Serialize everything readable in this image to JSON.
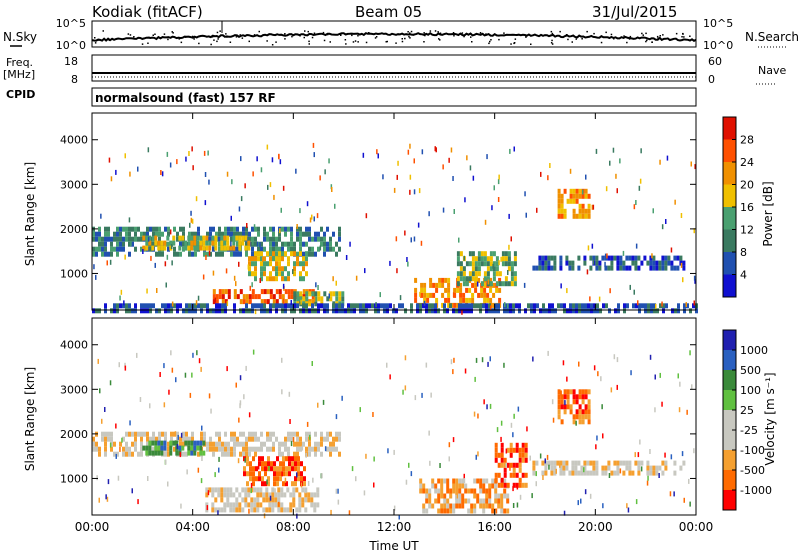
{
  "header": {
    "station": "Kodiak (fitACF)",
    "beam": "Beam 05",
    "date": "31/Jul/2015"
  },
  "strip_panels": {
    "nsky_label": "N.Sky",
    "nsearch_label": "N.Search",
    "nsky_ticks": [
      "10^5",
      "10^0"
    ],
    "nsearch_ticks": [
      "10^5",
      "10^0"
    ],
    "freq_label": "Freq.",
    "freq_unit": "[MHz]",
    "freq_ticks": [
      "18",
      "8"
    ],
    "nave_label": "Nave",
    "nave_ticks": [
      "60",
      "0"
    ],
    "cpid_label": "CPID",
    "cpid_value": "normalsound (fast) 157 RF"
  },
  "colors": {
    "power": [
      "#1010d0",
      "#2050b0",
      "#3a7a60",
      "#4aa070",
      "#f0c000",
      "#f09000",
      "#ff5000",
      "#e01000"
    ],
    "velocity": [
      "#ff0000",
      "#ff6a00",
      "#f5a030",
      "#c8c8c0",
      "#c8c8c0",
      "#60c040",
      "#3a8a3a",
      "#2a60c0",
      "#2020b0"
    ],
    "ground_scatter": "#c0c0b8"
  },
  "chart_data": [
    {
      "type": "heatmap",
      "panel": "power",
      "ylabel": "Slant Range [km]",
      "ylim": [
        180,
        4600
      ],
      "y_ticks": [
        "1000",
        "2000",
        "3000",
        "4000"
      ],
      "x_ticks": [
        "00:00",
        "04:00",
        "08:00",
        "12:00",
        "16:00",
        "20:00",
        "00:00"
      ],
      "xlim_hours": [
        0,
        24
      ],
      "colorbar_label": "Power [dB]",
      "colorbar_ticks": [
        "4",
        "8",
        "12",
        "16",
        "20",
        "24",
        "28"
      ],
      "regions": [
        {
          "t0": 0.0,
          "t1": 9.8,
          "r0": 1400,
          "r1": 2050,
          "level": 2
        },
        {
          "t0": 2.0,
          "t1": 6.2,
          "r0": 1550,
          "r1": 1850,
          "level": 4
        },
        {
          "t0": 6.2,
          "t1": 8.5,
          "r0": 900,
          "r1": 1500,
          "level": 4
        },
        {
          "t0": 4.8,
          "t1": 8.8,
          "r0": 320,
          "r1": 650,
          "level": 6
        },
        {
          "t0": 8.0,
          "t1": 10.0,
          "r0": 350,
          "r1": 600,
          "level": 3
        },
        {
          "t0": 12.8,
          "t1": 16.2,
          "r0": 300,
          "r1": 900,
          "level": 5
        },
        {
          "t0": 14.5,
          "t1": 16.8,
          "r0": 800,
          "r1": 1500,
          "level": 3
        },
        {
          "t0": 18.5,
          "t1": 19.8,
          "r0": 2300,
          "r1": 2900,
          "level": 5
        },
        {
          "t0": 17.5,
          "t1": 23.5,
          "r0": 1100,
          "r1": 1400,
          "level": 1
        },
        {
          "t0": 0.0,
          "t1": 24.0,
          "r0": 200,
          "r1": 330,
          "level": 1
        }
      ]
    },
    {
      "type": "heatmap",
      "panel": "velocity",
      "ylabel": "Slant Range [km]",
      "ylim": [
        180,
        4600
      ],
      "y_ticks": [
        "1000",
        "2000",
        "3000",
        "4000"
      ],
      "x_ticks": [
        "00:00",
        "04:00",
        "08:00",
        "12:00",
        "16:00",
        "20:00",
        "00:00"
      ],
      "xlabel": "Time UT",
      "xlim_hours": [
        0,
        24
      ],
      "colorbar_label": "Velocity [m s⁻¹]",
      "colorbar_ticks": [
        "1000",
        "500",
        "100",
        "25",
        "-25",
        "-100",
        "-500",
        "-1000"
      ],
      "regions": [
        {
          "t0": 0.0,
          "t1": 9.8,
          "r0": 1500,
          "r1": 2050,
          "level": 3
        },
        {
          "t0": 2.0,
          "t1": 4.5,
          "r0": 1550,
          "r1": 1850,
          "level": 6
        },
        {
          "t0": 6.0,
          "t1": 8.5,
          "r0": 900,
          "r1": 1500,
          "level": 1
        },
        {
          "t0": 4.5,
          "t1": 9.0,
          "r0": 350,
          "r1": 800,
          "level": 3
        },
        {
          "t0": 13.0,
          "t1": 16.5,
          "r0": 300,
          "r1": 1000,
          "level": 2
        },
        {
          "t0": 16.0,
          "t1": 17.2,
          "r0": 800,
          "r1": 1800,
          "level": 1
        },
        {
          "t0": 18.5,
          "t1": 19.8,
          "r0": 2300,
          "r1": 3000,
          "level": 1
        },
        {
          "t0": 17.5,
          "t1": 23.5,
          "r0": 1100,
          "r1": 1400,
          "level": 3
        }
      ]
    }
  ]
}
